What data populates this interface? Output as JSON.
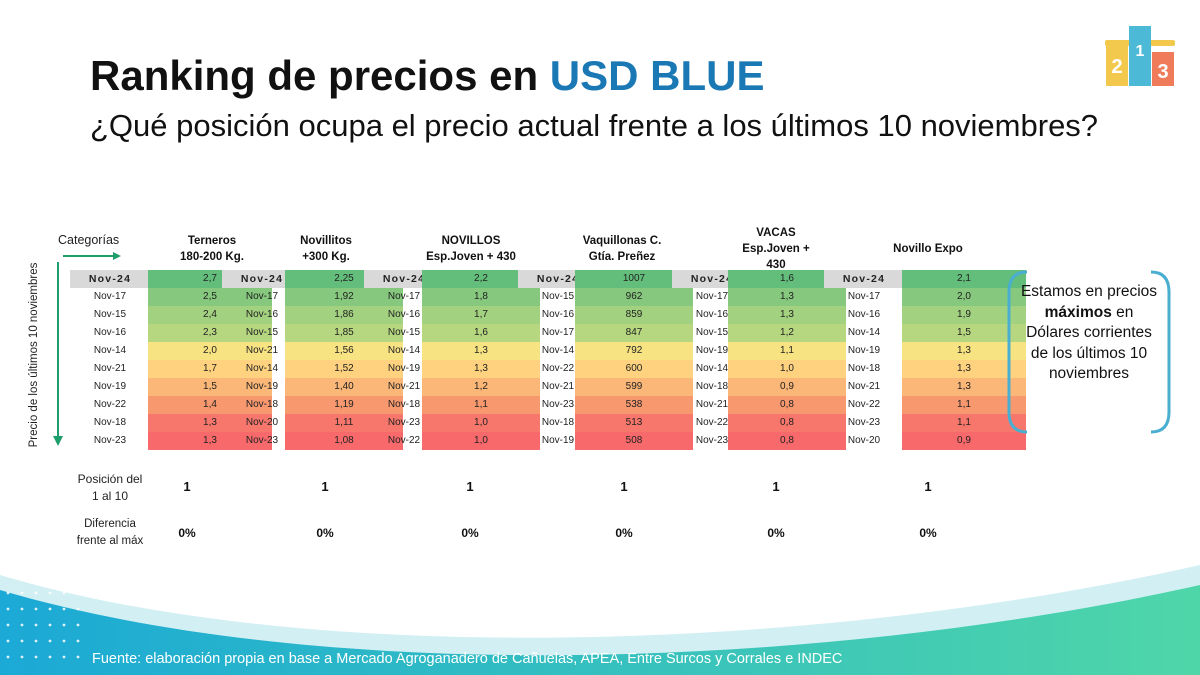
{
  "title": {
    "main": "Ranking de precios en ",
    "accent": "USD BLUE"
  },
  "subtitle": "¿Qué posición ocupa el precio actual frente a los últimos 10 noviembres?",
  "axis": {
    "categorias": "Categorías",
    "vertical": "Precio de los últimos 10 noviembres"
  },
  "headers": [
    [
      "Terneros",
      "180-200 Kg."
    ],
    [
      "Novillitos",
      "+300 Kg."
    ],
    [
      "NOVILLOS",
      "Esp.Joven + 430"
    ],
    [
      "Vaquillonas C.",
      "Gtía. Preñez"
    ],
    [
      "VACAS",
      "Esp.Joven +",
      "430"
    ],
    [
      "Novillo Expo"
    ]
  ],
  "groups": [
    {
      "labels": [
        "Nov-24",
        "Nov-17",
        "Nov-15",
        "Nov-16",
        "Nov-14",
        "Nov-21",
        "Nov-19",
        "Nov-22",
        "Nov-18",
        "Nov-23"
      ],
      "values": [
        "2,7",
        "2,5",
        "2,4",
        "2,3",
        "2,0",
        "1,7",
        "1,5",
        "1,4",
        "1,3",
        "1,3"
      ]
    },
    {
      "labels": [
        "Nov-24",
        "Nov-17",
        "Nov-16",
        "Nov-15",
        "Nov-21",
        "Nov-14",
        "Nov-19",
        "Nov-18",
        "Nov-20",
        "Nov-23"
      ],
      "values": [
        "2,25",
        "1,92",
        "1,86",
        "1,85",
        "1,56",
        "1,52",
        "1,40",
        "1,19",
        "1,11",
        "1,08"
      ]
    },
    {
      "labels": [
        "Nov-24",
        "Nov-17",
        "Nov-16",
        "Nov-15",
        "Nov-14",
        "Nov-19",
        "Nov-21",
        "Nov-18",
        "Nov-23",
        "Nov-22"
      ],
      "values": [
        "2,2",
        "1,8",
        "1,7",
        "1,6",
        "1,3",
        "1,3",
        "1,2",
        "1,1",
        "1,0",
        "1,0"
      ]
    },
    {
      "labels": [
        "Nov-24",
        "Nov-15",
        "Nov-16",
        "Nov-17",
        "Nov-14",
        "Nov-22",
        "Nov-21",
        "Nov-23",
        "Nov-18",
        "Nov-19"
      ],
      "values": [
        "1007",
        "962",
        "859",
        "847",
        "792",
        "600",
        "599",
        "538",
        "513",
        "508"
      ]
    },
    {
      "labels": [
        "Nov-24",
        "Nov-17",
        "Nov-16",
        "Nov-15",
        "Nov-19",
        "Nov-14",
        "Nov-18",
        "Nov-21",
        "Nov-22",
        "Nov-23"
      ],
      "values": [
        "1,6",
        "1,3",
        "1,3",
        "1,2",
        "1,1",
        "1,0",
        "0,9",
        "0,8",
        "0,8",
        "0,8"
      ]
    },
    {
      "labels": [
        "Nov-24",
        "Nov-17",
        "Nov-16",
        "Nov-14",
        "Nov-19",
        "Nov-18",
        "Nov-21",
        "Nov-22",
        "Nov-23",
        "Nov-20"
      ],
      "values": [
        "2,1",
        "2,0",
        "1,9",
        "1,5",
        "1,3",
        "1,3",
        "1,3",
        "1,1",
        "1,1",
        "0,9"
      ]
    }
  ],
  "heat_colors": [
    "#63be7b",
    "#86c87d",
    "#a2d17f",
    "#b6d780",
    "#f8e383",
    "#fed27e",
    "#fbb778",
    "#f8986f",
    "#f8776c",
    "#f8696b"
  ],
  "position_label": [
    "Posición del",
    "1 al 10"
  ],
  "positions": [
    "1",
    "1",
    "1",
    "1",
    "1",
    "1"
  ],
  "difference_label": [
    "Diferencia",
    "frente al máx"
  ],
  "differences": [
    "0%",
    "0%",
    "0%",
    "0%",
    "0%",
    "0%"
  ],
  "callout": {
    "pre": "Estamos en precios",
    "bold": "máximos",
    "post": "en Dólares corrientes de los últimos 10 noviembres"
  },
  "podium": [
    "1",
    "2",
    "3"
  ],
  "colors": {
    "accent": "#1a78b4",
    "callout_border": "#4aaed0",
    "footer_start": "#1ba9d6",
    "footer_end": "#4fd6a8"
  },
  "source": "Fuente: elaboración propia en base a Mercado Agroganadero de Cañuelas, APEA, Entre Surcos y Corrales e INDEC"
}
